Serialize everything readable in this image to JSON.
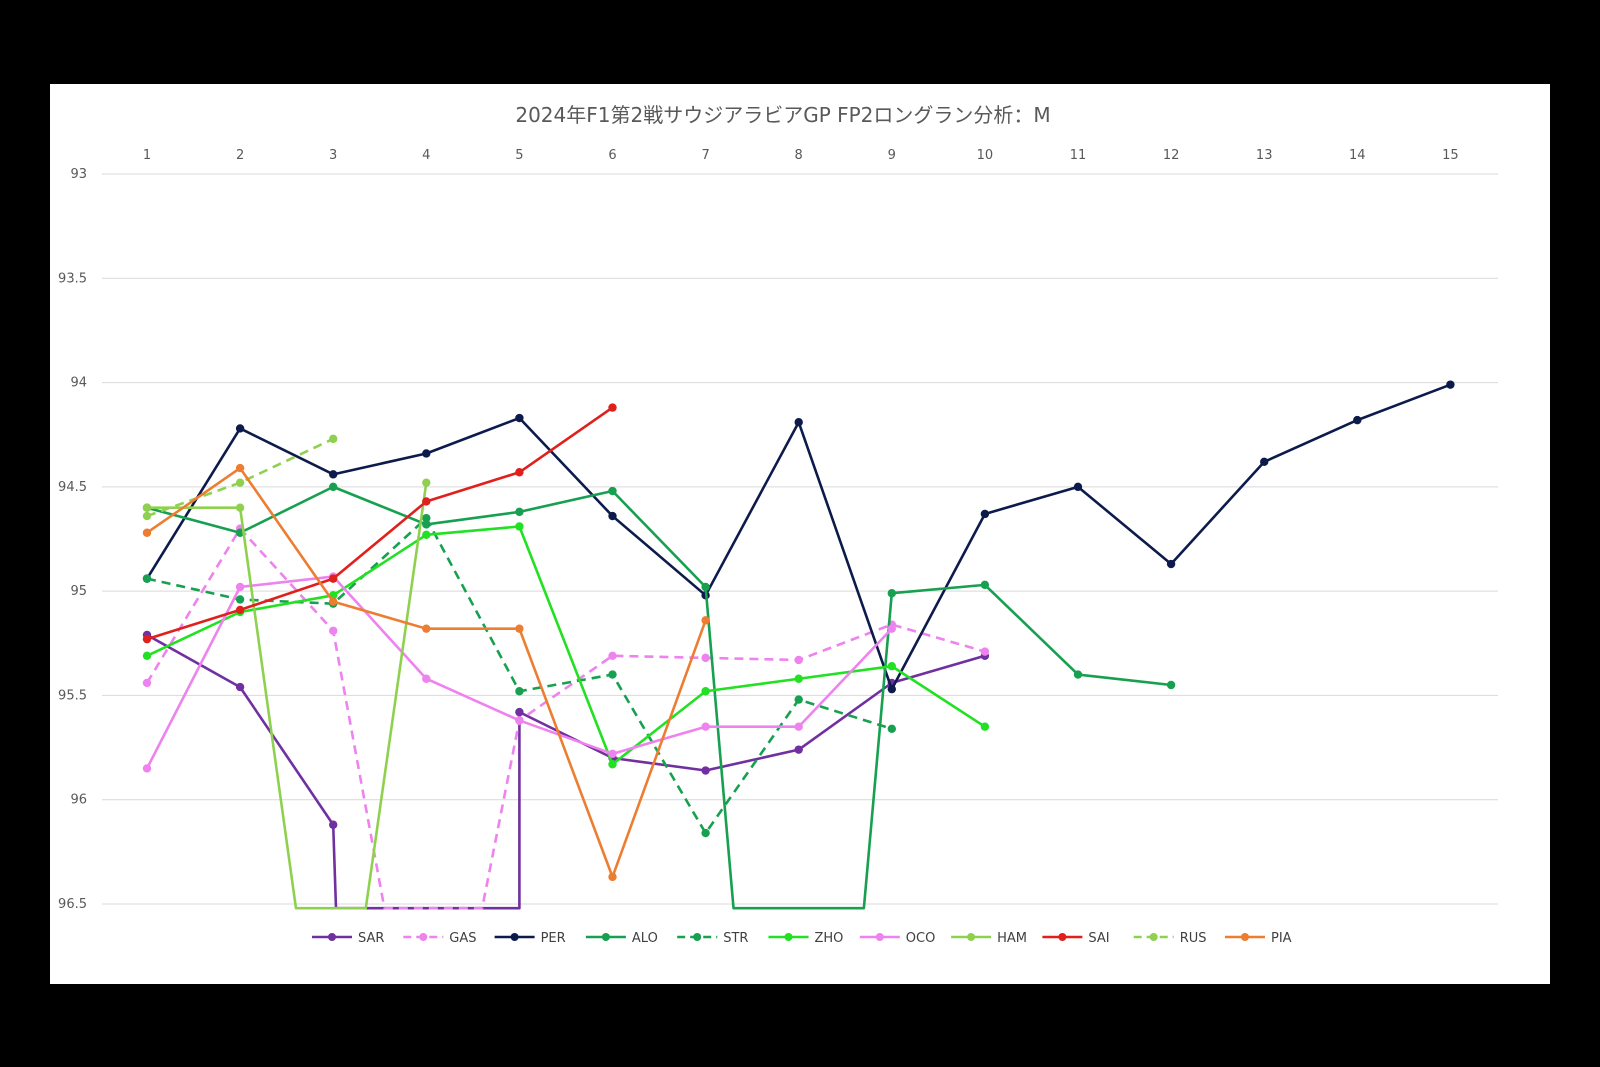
{
  "chart_data": {
    "type": "line",
    "title": "2024年F1第2戦サウジアラビアGP FP2ロングラン分析：M",
    "x": [
      1,
      2,
      3,
      4,
      5,
      6,
      7,
      8,
      9,
      10,
      11,
      12,
      13,
      14,
      15
    ],
    "x_axis_position": "top",
    "ylim": [
      93,
      96.5
    ],
    "y_reversed": true,
    "y_ticks": [
      93,
      93.5,
      94,
      94.5,
      95,
      95.5,
      96,
      96.5
    ],
    "grid": true,
    "legend_position": "bottom",
    "series": [
      {
        "name": "SAR",
        "color": "#7030a0",
        "dashed": false,
        "values": [
          [
            1,
            95.21
          ],
          [
            2,
            95.46
          ],
          [
            3,
            96.12
          ],
          [
            3.03,
            96.52
          ],
          [
            5,
            96.52
          ],
          [
            5,
            95.58
          ],
          [
            6,
            95.8
          ],
          [
            7,
            95.86
          ],
          [
            8,
            95.76
          ],
          [
            9,
            95.44
          ],
          [
            10,
            95.31
          ]
        ]
      },
      {
        "name": "GAS",
        "color": "#ee82ee",
        "dashed": true,
        "values": [
          [
            1,
            95.44
          ],
          [
            2,
            94.7
          ],
          [
            3,
            95.19
          ],
          [
            3.55,
            96.52
          ],
          [
            4.6,
            96.52
          ],
          [
            5,
            95.62
          ],
          [
            6,
            95.31
          ],
          [
            7,
            95.32
          ],
          [
            8,
            95.33
          ],
          [
            9,
            95.16
          ],
          [
            10,
            95.29
          ]
        ]
      },
      {
        "name": "PER",
        "color": "#0d1b4c",
        "dashed": false,
        "values": [
          [
            1,
            94.94
          ],
          [
            2,
            94.22
          ],
          [
            3,
            94.44
          ],
          [
            4,
            94.34
          ],
          [
            5,
            94.17
          ],
          [
            6,
            94.64
          ],
          [
            7,
            95.02
          ],
          [
            8,
            94.19
          ],
          [
            9,
            95.47
          ],
          [
            10,
            94.63
          ],
          [
            11,
            94.5
          ],
          [
            12,
            94.87
          ],
          [
            13,
            94.38
          ],
          [
            14,
            94.18
          ],
          [
            15,
            94.01
          ]
        ]
      },
      {
        "name": "ALO",
        "color": "#17a050",
        "dashed": false,
        "values": [
          [
            1,
            94.6
          ],
          [
            2,
            94.72
          ],
          [
            3,
            94.5
          ],
          [
            4,
            94.68
          ],
          [
            5,
            94.62
          ],
          [
            6,
            94.52
          ],
          [
            7,
            94.98
          ],
          [
            7.3,
            96.52
          ],
          [
            8.7,
            96.52
          ],
          [
            9,
            95.01
          ],
          [
            10,
            94.97
          ],
          [
            11,
            95.4
          ],
          [
            12,
            95.45
          ]
        ]
      },
      {
        "name": "STR",
        "color": "#17a050",
        "dashed": true,
        "values": [
          [
            1,
            94.94
          ],
          [
            2,
            95.04
          ],
          [
            3,
            95.06
          ],
          [
            4,
            94.65
          ],
          [
            5,
            95.48
          ],
          [
            6,
            95.4
          ],
          [
            7,
            96.16
          ],
          [
            8,
            95.52
          ],
          [
            9,
            95.66
          ]
        ]
      },
      {
        "name": "ZHO",
        "color": "#22e022",
        "dashed": false,
        "values": [
          [
            1,
            95.31
          ],
          [
            2,
            95.1
          ],
          [
            3,
            95.02
          ],
          [
            4,
            94.73
          ],
          [
            5,
            94.69
          ],
          [
            6,
            95.83
          ],
          [
            7,
            95.48
          ],
          [
            8,
            95.42
          ],
          [
            9,
            95.36
          ],
          [
            10,
            95.65
          ]
        ]
      },
      {
        "name": "OCO",
        "color": "#ee82ee",
        "dashed": false,
        "values": [
          [
            1,
            95.85
          ],
          [
            2,
            94.98
          ],
          [
            3,
            94.93
          ],
          [
            4,
            95.42
          ],
          [
            5,
            95.62
          ],
          [
            6,
            95.78
          ],
          [
            7,
            95.65
          ],
          [
            8,
            95.65
          ],
          [
            9,
            95.18
          ]
        ]
      },
      {
        "name": "HAM",
        "color": "#8fd14f",
        "dashed": false,
        "values": [
          [
            1,
            94.6
          ],
          [
            2,
            94.6
          ],
          [
            2.6,
            96.52
          ],
          [
            3.35,
            96.52
          ],
          [
            4,
            94.48
          ]
        ]
      },
      {
        "name": "SAI",
        "color": "#e0201c",
        "dashed": false,
        "values": [
          [
            1,
            95.23
          ],
          [
            2,
            95.09
          ],
          [
            3,
            94.94
          ],
          [
            4,
            94.57
          ],
          [
            5,
            94.43
          ],
          [
            6,
            94.12
          ]
        ]
      },
      {
        "name": "RUS",
        "color": "#8fd14f",
        "dashed": true,
        "values": [
          [
            1,
            94.64
          ],
          [
            2,
            94.48
          ],
          [
            3,
            94.27
          ]
        ]
      },
      {
        "name": "PIA",
        "color": "#ed7d31",
        "dashed": false,
        "values": [
          [
            1,
            94.72
          ],
          [
            2,
            94.41
          ],
          [
            3,
            95.05
          ],
          [
            4,
            95.18
          ],
          [
            5,
            95.18
          ],
          [
            6,
            96.37
          ],
          [
            7,
            95.14
          ]
        ]
      }
    ]
  }
}
